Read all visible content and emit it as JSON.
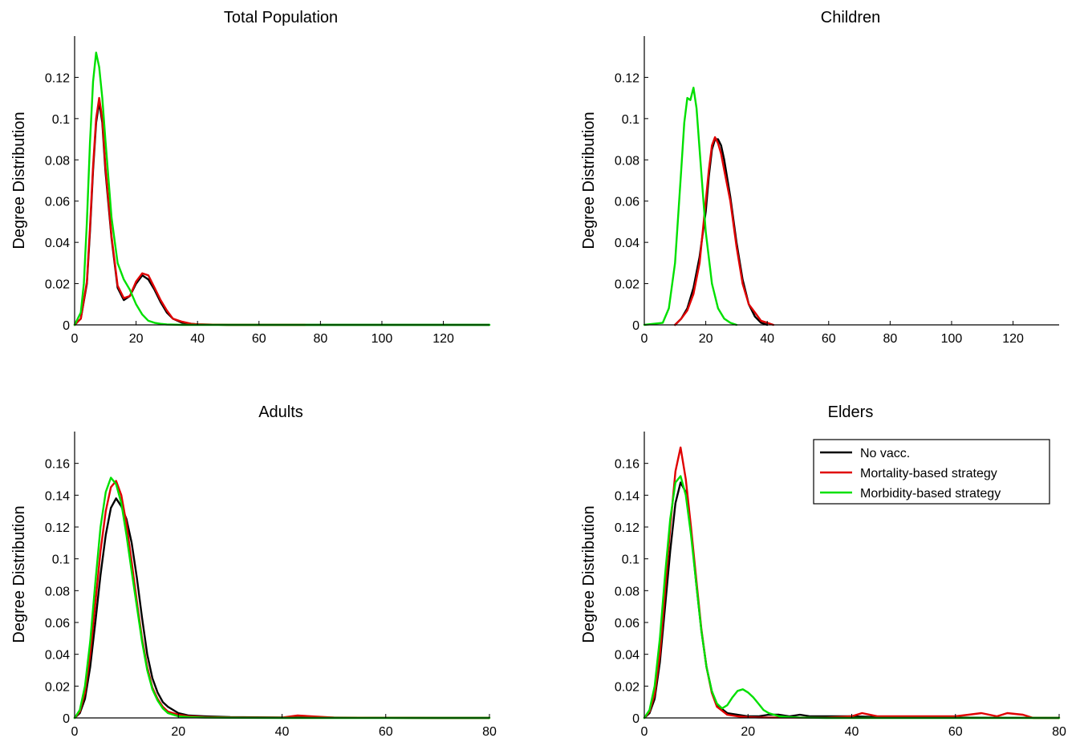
{
  "colors": {
    "no_vacc": "#000000",
    "mortality": "#e00000",
    "morbidity": "#00e000"
  },
  "legend": {
    "placement": "top-right of Elders panel",
    "entries": [
      {
        "name": "No vacc.",
        "color": "#000000"
      },
      {
        "name": "Mortality-based strategy",
        "color": "#e00000"
      },
      {
        "name": "Morbidity-based strategy",
        "color": "#00e000"
      }
    ]
  },
  "chart_data": [
    {
      "type": "line",
      "title": "Total Population",
      "xlabel": "",
      "ylabel": "Degree Distribution",
      "xlim": [
        0,
        135
      ],
      "ylim": [
        0,
        0.14
      ],
      "xticks": [
        0,
        20,
        40,
        60,
        80,
        100,
        120
      ],
      "yticks": [
        0,
        0.02,
        0.04,
        0.06,
        0.08,
        0.1,
        0.12
      ],
      "series": [
        {
          "name": "No vacc.",
          "x": [
            0,
            2,
            4,
            5,
            6,
            7,
            8,
            9,
            10,
            12,
            14,
            16,
            18,
            20,
            22,
            24,
            26,
            28,
            30,
            32,
            35,
            38,
            40,
            45,
            50,
            60,
            70,
            80,
            90,
            100,
            110,
            120,
            130,
            135
          ],
          "y": [
            0,
            0.003,
            0.02,
            0.045,
            0.075,
            0.098,
            0.108,
            0.098,
            0.075,
            0.042,
            0.018,
            0.012,
            0.014,
            0.02,
            0.024,
            0.022,
            0.017,
            0.011,
            0.006,
            0.003,
            0.001,
            0.0005,
            0.0002,
            0.0001,
            0,
            0,
            0,
            0,
            0,
            0,
            0,
            0,
            0,
            0
          ]
        },
        {
          "name": "Mortality-based strategy",
          "x": [
            0,
            2,
            4,
            5,
            6,
            7,
            8,
            9,
            10,
            12,
            14,
            16,
            18,
            20,
            22,
            24,
            26,
            28,
            30,
            32,
            35,
            38,
            40,
            45,
            50,
            60,
            70,
            75
          ],
          "y": [
            0,
            0.003,
            0.021,
            0.047,
            0.077,
            0.1,
            0.11,
            0.1,
            0.077,
            0.043,
            0.019,
            0.013,
            0.014,
            0.021,
            0.025,
            0.024,
            0.018,
            0.012,
            0.007,
            0.003,
            0.0015,
            0.0005,
            0.0003,
            0.0001,
            0,
            0,
            0,
            0
          ]
        },
        {
          "name": "Morbidity-based strategy",
          "x": [
            0,
            2,
            3,
            4,
            5,
            6,
            7,
            8,
            9,
            10,
            12,
            14,
            16,
            18,
            20,
            22,
            24,
            26,
            28,
            30,
            35,
            40,
            50,
            60,
            80,
            100,
            120,
            130,
            135
          ],
          "y": [
            0,
            0.006,
            0.02,
            0.05,
            0.088,
            0.118,
            0.132,
            0.125,
            0.11,
            0.09,
            0.052,
            0.03,
            0.022,
            0.017,
            0.01,
            0.005,
            0.002,
            0.001,
            0.0005,
            0.0002,
            0,
            0,
            0,
            0,
            0,
            0,
            0,
            0,
            0
          ]
        }
      ]
    },
    {
      "type": "line",
      "title": "Children",
      "xlabel": "",
      "ylabel": "Degree Distribution",
      "xlim": [
        0,
        135
      ],
      "ylim": [
        0,
        0.14
      ],
      "xticks": [
        0,
        20,
        40,
        60,
        80,
        100,
        120
      ],
      "yticks": [
        0,
        0.02,
        0.04,
        0.06,
        0.08,
        0.1,
        0.12
      ],
      "series": [
        {
          "name": "No vacc.",
          "x": [
            10,
            12,
            14,
            16,
            18,
            20,
            21,
            22,
            23,
            24,
            25,
            26,
            28,
            30,
            32,
            34,
            36,
            38,
            40
          ],
          "y": [
            0,
            0.003,
            0.008,
            0.018,
            0.033,
            0.055,
            0.072,
            0.085,
            0.09,
            0.09,
            0.087,
            0.08,
            0.062,
            0.04,
            0.022,
            0.01,
            0.004,
            0.001,
            0
          ]
        },
        {
          "name": "Mortality-based strategy",
          "x": [
            10,
            12,
            14,
            16,
            18,
            20,
            21,
            22,
            23,
            24,
            25,
            26,
            28,
            30,
            32,
            34,
            36,
            38,
            40,
            42
          ],
          "y": [
            0,
            0.003,
            0.007,
            0.015,
            0.03,
            0.06,
            0.075,
            0.087,
            0.091,
            0.088,
            0.083,
            0.075,
            0.06,
            0.038,
            0.02,
            0.01,
            0.006,
            0.002,
            0.001,
            0
          ]
        },
        {
          "name": "Morbidity-based strategy",
          "x": [
            0,
            6,
            8,
            10,
            12,
            13,
            14,
            15,
            16,
            17,
            18,
            20,
            22,
            24,
            26,
            28,
            30
          ],
          "y": [
            0,
            0.001,
            0.008,
            0.03,
            0.075,
            0.098,
            0.11,
            0.109,
            0.115,
            0.105,
            0.085,
            0.045,
            0.02,
            0.008,
            0.003,
            0.001,
            0
          ]
        }
      ]
    },
    {
      "type": "line",
      "title": "Adults",
      "xlabel": "",
      "ylabel": "Degree Distribution",
      "xlim": [
        0,
        80
      ],
      "ylim": [
        0,
        0.18
      ],
      "xticks": [
        0,
        20,
        40,
        60,
        80
      ],
      "yticks": [
        0,
        0.02,
        0.04,
        0.06,
        0.08,
        0.1,
        0.12,
        0.14,
        0.16
      ],
      "series": [
        {
          "name": "No vacc.",
          "x": [
            0,
            1,
            2,
            3,
            4,
            5,
            6,
            7,
            8,
            9,
            10,
            11,
            12,
            13,
            14,
            15,
            16,
            17,
            18,
            20,
            22,
            25,
            30,
            40,
            50,
            60,
            70,
            80
          ],
          "y": [
            0,
            0.003,
            0.012,
            0.032,
            0.06,
            0.09,
            0.115,
            0.132,
            0.138,
            0.133,
            0.125,
            0.11,
            0.088,
            0.063,
            0.04,
            0.025,
            0.016,
            0.01,
            0.007,
            0.003,
            0.0015,
            0.001,
            0.0005,
            0.0003,
            0.0002,
            0.0001,
            0,
            0
          ]
        },
        {
          "name": "Mortality-based strategy",
          "x": [
            0,
            1,
            2,
            3,
            4,
            5,
            6,
            7,
            8,
            9,
            10,
            11,
            12,
            13,
            14,
            15,
            16,
            17,
            18,
            20,
            22,
            25,
            30,
            40,
            43,
            50,
            60,
            70,
            80
          ],
          "y": [
            0,
            0.004,
            0.016,
            0.04,
            0.072,
            0.105,
            0.13,
            0.145,
            0.149,
            0.14,
            0.122,
            0.098,
            0.073,
            0.05,
            0.032,
            0.019,
            0.012,
            0.007,
            0.004,
            0.002,
            0.001,
            0.0005,
            0.0003,
            0.0002,
            0.0015,
            0.0002,
            0.0001,
            0,
            0
          ]
        },
        {
          "name": "Morbidity-based strategy",
          "x": [
            0,
            1,
            2,
            3,
            4,
            5,
            6,
            7,
            8,
            9,
            10,
            11,
            12,
            13,
            14,
            15,
            16,
            17,
            18,
            20,
            22,
            25,
            30,
            40,
            50,
            60,
            70,
            80
          ],
          "y": [
            0,
            0.005,
            0.02,
            0.048,
            0.085,
            0.12,
            0.142,
            0.151,
            0.147,
            0.135,
            0.115,
            0.092,
            0.07,
            0.048,
            0.03,
            0.018,
            0.011,
            0.006,
            0.003,
            0.001,
            0.0005,
            0.0002,
            0.0001,
            0,
            0,
            0,
            0,
            0
          ]
        }
      ]
    },
    {
      "type": "line",
      "title": "Elders",
      "xlabel": "",
      "ylabel": "Degree Distribution",
      "xlim": [
        0,
        80
      ],
      "ylim": [
        0,
        0.18
      ],
      "xticks": [
        0,
        20,
        40,
        60,
        80
      ],
      "yticks": [
        0,
        0.02,
        0.04,
        0.06,
        0.08,
        0.1,
        0.12,
        0.14,
        0.16
      ],
      "series": [
        {
          "name": "No vacc.",
          "x": [
            0,
            1,
            2,
            3,
            4,
            5,
            6,
            7,
            8,
            9,
            10,
            11,
            12,
            13,
            14,
            16,
            18,
            20,
            22,
            24,
            26,
            28,
            30,
            32,
            35,
            40,
            45,
            50,
            60,
            70,
            80
          ],
          "y": [
            0,
            0.003,
            0.012,
            0.035,
            0.07,
            0.105,
            0.135,
            0.148,
            0.142,
            0.118,
            0.085,
            0.055,
            0.032,
            0.017,
            0.008,
            0.003,
            0.002,
            0.001,
            0.001,
            0.002,
            0.002,
            0.001,
            0.002,
            0.001,
            0.001,
            0.001,
            0.0005,
            0.0003,
            0.0002,
            0.0001,
            0
          ]
        },
        {
          "name": "Mortality-based strategy",
          "x": [
            0,
            1,
            2,
            3,
            4,
            5,
            6,
            7,
            8,
            9,
            10,
            11,
            12,
            13,
            14,
            16,
            18,
            20,
            22,
            25,
            30,
            35,
            40,
            42,
            45,
            50,
            55,
            60,
            65,
            68,
            70,
            73,
            75,
            80
          ],
          "y": [
            0,
            0.004,
            0.015,
            0.04,
            0.08,
            0.12,
            0.155,
            0.17,
            0.15,
            0.12,
            0.088,
            0.056,
            0.032,
            0.016,
            0.007,
            0.002,
            0.001,
            0.0005,
            0.0003,
            0.0002,
            0.0002,
            0.0002,
            0.001,
            0.003,
            0.001,
            0.001,
            0.001,
            0.001,
            0.003,
            0.001,
            0.003,
            0.002,
            0,
            0
          ]
        },
        {
          "name": "Morbidity-based strategy",
          "x": [
            0,
            1,
            2,
            3,
            4,
            5,
            6,
            7,
            8,
            9,
            10,
            11,
            12,
            13,
            14,
            15,
            16,
            17,
            18,
            19,
            20,
            21,
            22,
            23,
            24,
            26,
            28,
            30,
            35,
            40,
            50,
            60,
            70,
            80
          ],
          "y": [
            0,
            0.005,
            0.02,
            0.05,
            0.09,
            0.125,
            0.148,
            0.152,
            0.14,
            0.115,
            0.085,
            0.055,
            0.032,
            0.017,
            0.009,
            0.006,
            0.008,
            0.013,
            0.017,
            0.018,
            0.016,
            0.013,
            0.009,
            0.005,
            0.003,
            0.001,
            0.0005,
            0.0002,
            0,
            0,
            0,
            0,
            0,
            0
          ]
        }
      ]
    }
  ]
}
